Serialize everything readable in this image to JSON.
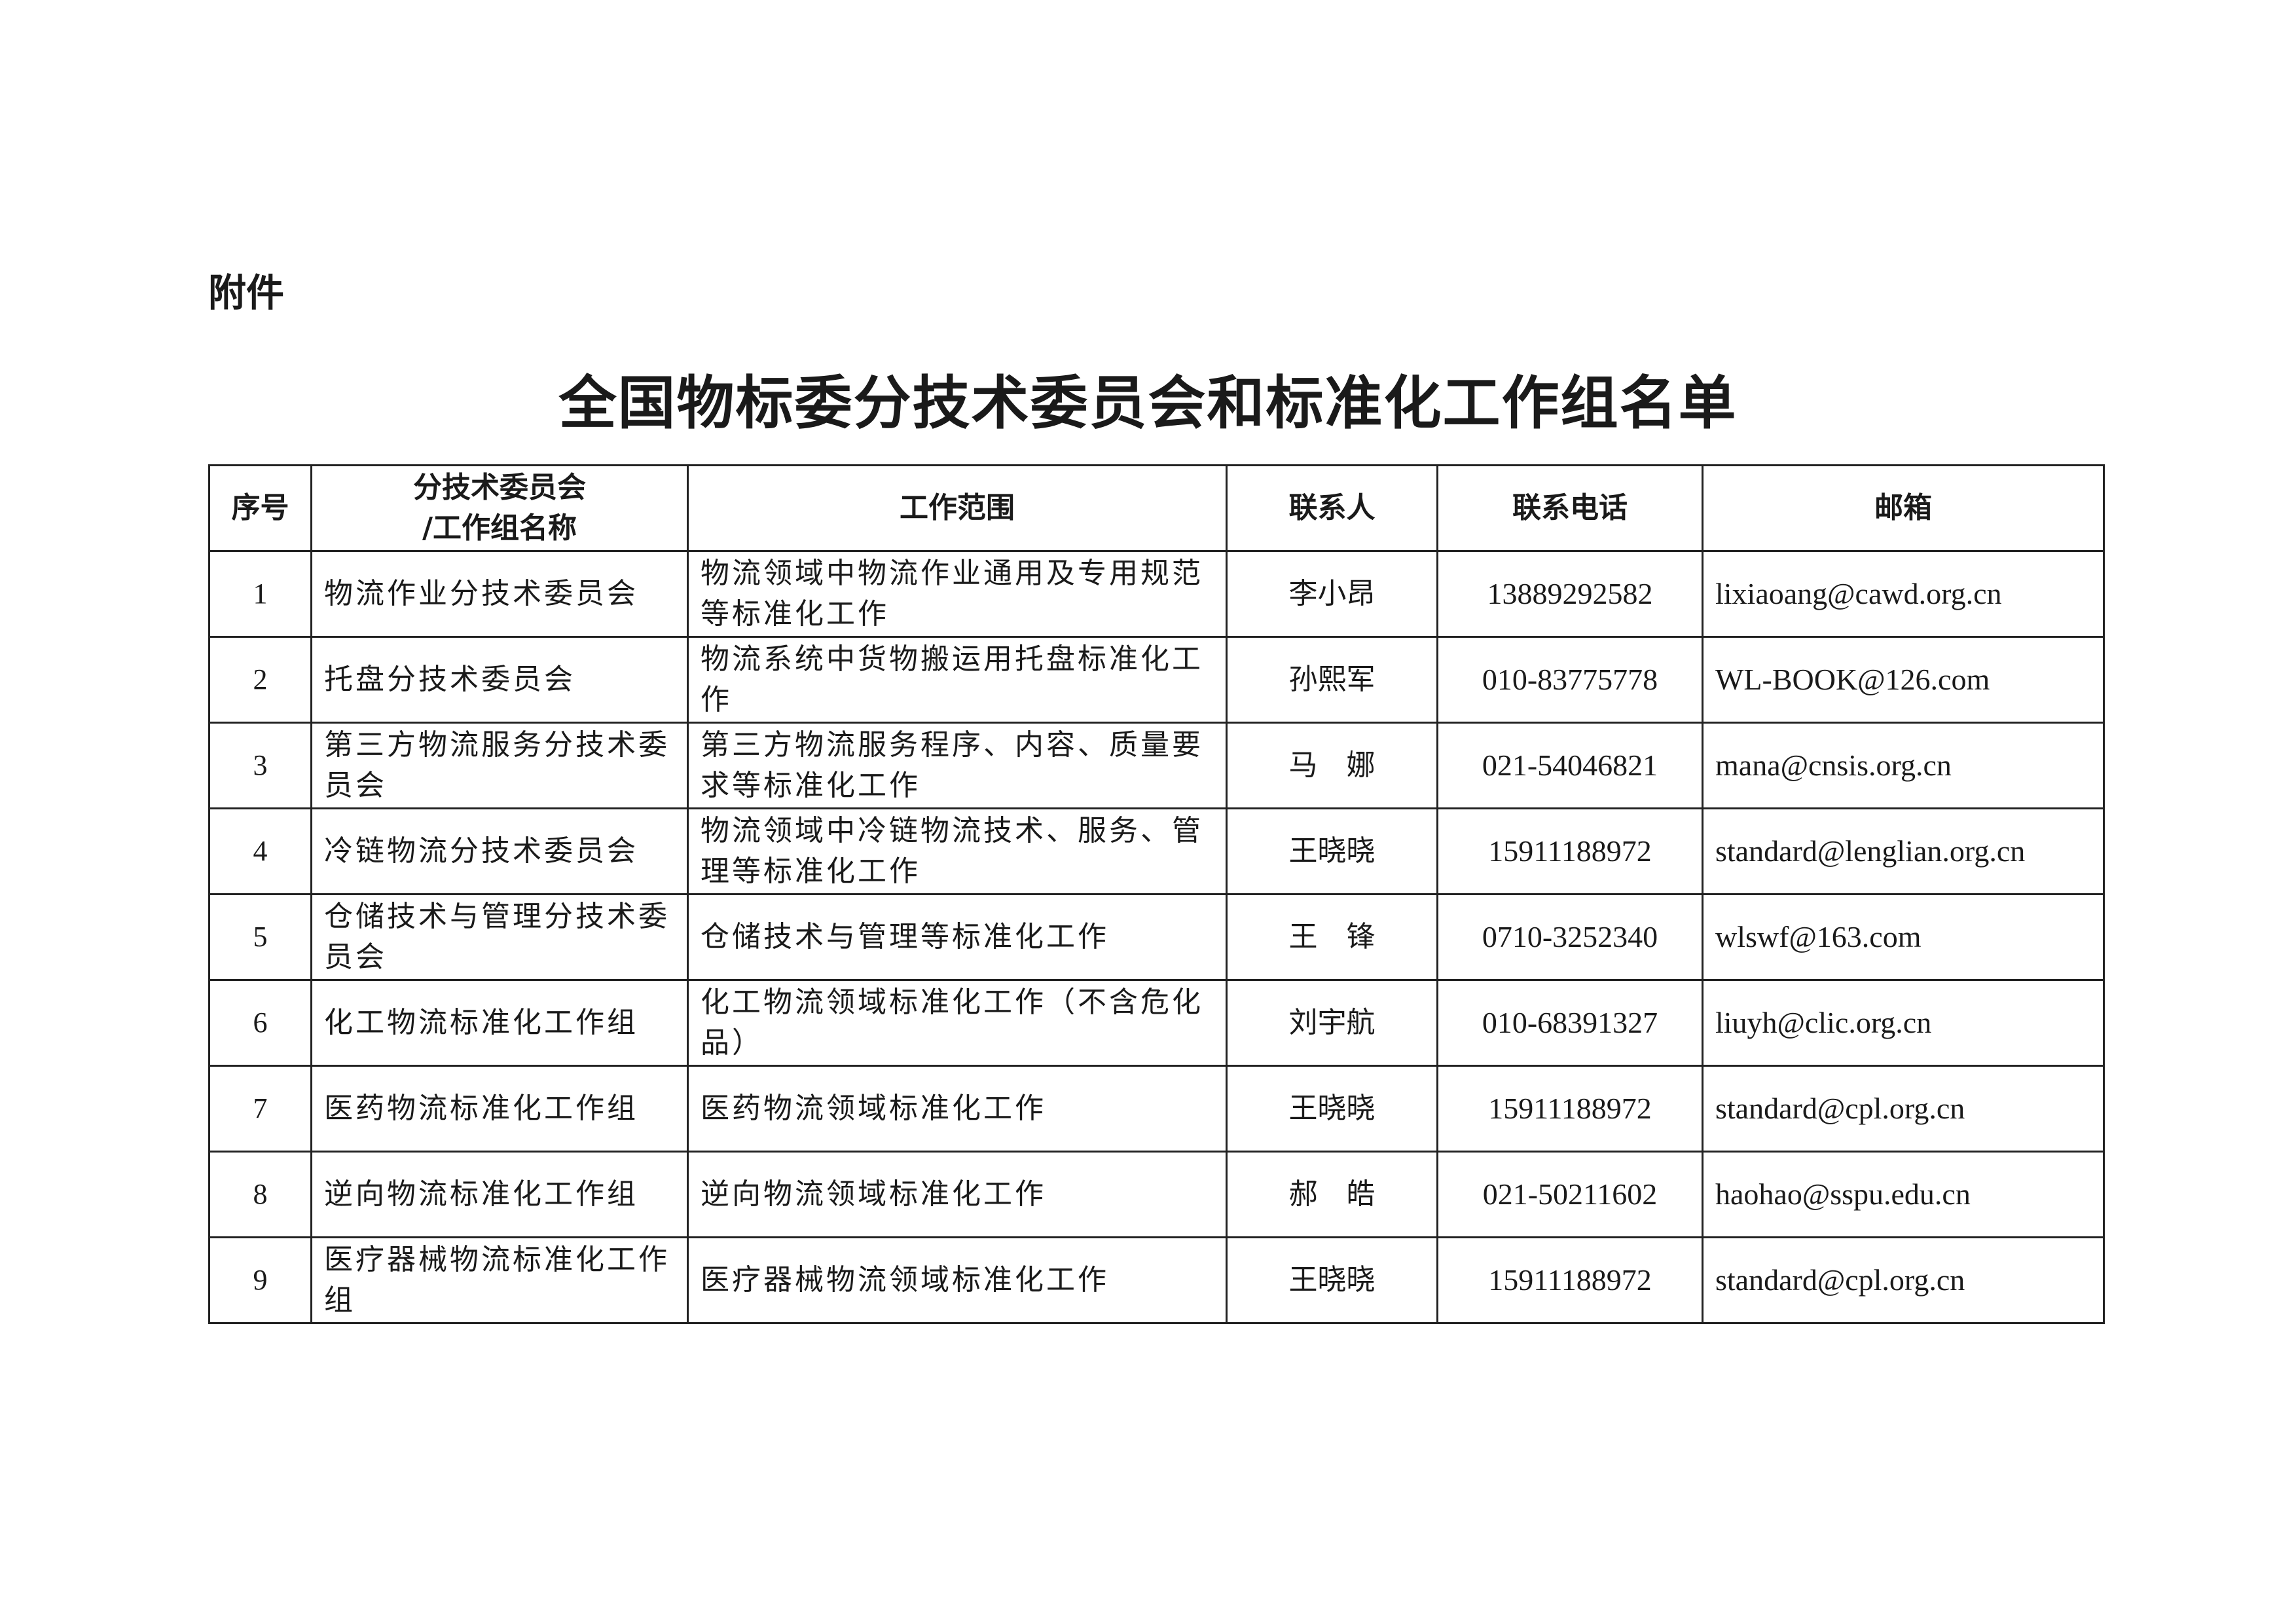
{
  "attachment_label": "附件",
  "title": "全国物标委分技术委员会和标准化工作组名单",
  "table": {
    "headers": [
      "序号",
      "分技术委员会\n/工作组名称",
      "工作范围",
      "联系人",
      "联系电话",
      "邮箱"
    ],
    "header_name_line1": "分技术委员会",
    "header_name_line2": "/工作组名称",
    "rows": [
      {
        "no": "1",
        "name": "物流作业分技术委员会",
        "scope": "物流领域中物流作业通用及专用规范等标准化工作",
        "contact": "李小昂",
        "phone": "13889292582",
        "email": "lixiaoang@cawd.org.cn"
      },
      {
        "no": "2",
        "name": "托盘分技术委员会",
        "scope": "物流系统中货物搬运用托盘标准化工作",
        "contact": "孙熙军",
        "phone": "010-83775778",
        "email": "WL-BOOK@126.com"
      },
      {
        "no": "3",
        "name": "第三方物流服务分技术委员会",
        "scope": "第三方物流服务程序、内容、质量要求等标准化工作",
        "contact": "马　娜",
        "phone": "021-54046821",
        "email": "mana@cnsis.org.cn"
      },
      {
        "no": "4",
        "name": "冷链物流分技术委员会",
        "scope": "物流领域中冷链物流技术、服务、管理等标准化工作",
        "contact": "王晓晓",
        "phone": "15911188972",
        "email": "standard@lenglian.org.cn"
      },
      {
        "no": "5",
        "name": "仓储技术与管理分技术委员会",
        "scope": "仓储技术与管理等标准化工作",
        "contact": "王　锋",
        "phone": "0710-3252340",
        "email": "wlswf@163.com"
      },
      {
        "no": "6",
        "name": "化工物流标准化工作组",
        "scope": "化工物流领域标准化工作（不含危化品）",
        "contact": "刘宇航",
        "phone": "010-68391327",
        "email": "liuyh@clic.org.cn"
      },
      {
        "no": "7",
        "name": "医药物流标准化工作组",
        "scope": "医药物流领域标准化工作",
        "contact": "王晓晓",
        "phone": "15911188972",
        "email": "standard@cpl.org.cn"
      },
      {
        "no": "8",
        "name": "逆向物流标准化工作组",
        "scope": "逆向物流领域标准化工作",
        "contact": "郝　皓",
        "phone": "021-50211602",
        "email": "haohao@sspu.edu.cn"
      },
      {
        "no": "9",
        "name": "医疗器械物流标准化工作组",
        "scope": "医疗器械物流领域标准化工作",
        "contact": "王晓晓",
        "phone": "15911188972",
        "email": "standard@cpl.org.cn"
      }
    ]
  }
}
